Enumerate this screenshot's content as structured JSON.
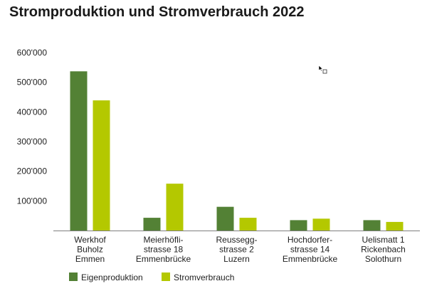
{
  "colors": {
    "eigenproduktion": "#538135",
    "stromverbrauch": "#b4c800",
    "axis": "#7f7f7f"
  },
  "chart_data": {
    "type": "bar",
    "title": "Stromproduktion und Stromverbrauch 2022",
    "xlabel": "",
    "ylabel": "",
    "ylim": [
      0,
      600000
    ],
    "yticks": [
      100000,
      200000,
      300000,
      400000,
      500000,
      600000
    ],
    "ytick_labels": [
      "100'000",
      "200'000",
      "300'000",
      "400'000",
      "500'000",
      "600'000"
    ],
    "grid": false,
    "legend_position": "bottom-left",
    "categories": [
      [
        "Werkhof",
        "Buholz",
        "Emmen"
      ],
      [
        "Meierhöfli-",
        "strasse 18",
        "Emmenbrücke"
      ],
      [
        "Reussegg-",
        "strasse 2",
        "Luzern"
      ],
      [
        "Hochdorfer-",
        "strasse 14",
        "Emmenbrücke"
      ],
      [
        "Uelismatt 1",
        "Rickenbach",
        "Solothurn"
      ]
    ],
    "series": [
      {
        "name": "Eigenproduktion",
        "values": [
          537000,
          43000,
          80000,
          35000,
          35000
        ]
      },
      {
        "name": "Stromverbrauch",
        "values": [
          439000,
          158000,
          43000,
          40000,
          29000
        ]
      }
    ]
  }
}
